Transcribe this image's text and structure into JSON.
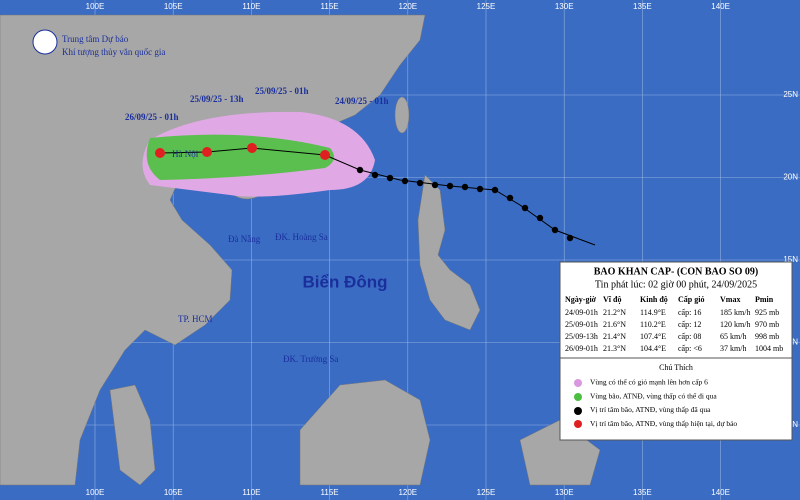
{
  "header": {
    "org": "Trung tâm Dự báo",
    "org_sub": "Khí tượng thủy văn quốc gia"
  },
  "grid": {
    "lon_labels": [
      "100E",
      "105E",
      "110E",
      "115E",
      "120E",
      "125E",
      "130E",
      "135E",
      "140E"
    ],
    "lat_labels": [
      "25N",
      "20N",
      "15N",
      "10N",
      "5N"
    ]
  },
  "map": {
    "track_labels": [
      "26/09/25 - 01h",
      "25/09/25 - 13h",
      "25/09/25 - 01h",
      "24/09/25 - 01h"
    ],
    "places": {
      "hanoi": "Hà Nội",
      "danang": "Đà Nẵng",
      "hoangsa": "ĐK. Hoàng Sa",
      "sea": "Biển Đông",
      "hcm": "TP. HCM",
      "truongsa": "ĐK. Trường Sa"
    }
  },
  "bulletin": {
    "title": "BAO KHAN CAP- (CON BAO SO 09)",
    "issued": "Tin phát lúc: 02 giờ 00 phút, 24/09/2025",
    "table": {
      "header": [
        "Ngày-giờ",
        "Vĩ độ",
        "Kinh độ",
        "Cấp gió",
        "Vmax",
        "Pmin"
      ],
      "rows": [
        [
          "24/09-01h",
          "21.2°N",
          "114.9°E",
          "cấp: 16",
          "185 km/h",
          "925 mb"
        ],
        [
          "25/09-01h",
          "21.6°N",
          "110.2°E",
          "cấp: 12",
          "120 km/h",
          "970 mb"
        ],
        [
          "25/09-13h",
          "21.4°N",
          "107.4°E",
          "cấp: 08",
          "65 km/h",
          "998 mb"
        ],
        [
          "26/09-01h",
          "21.3°N",
          "104.4°E",
          "cấp: <6",
          "37 km/h",
          "1004 mb"
        ]
      ]
    }
  },
  "legend": {
    "title": "Chú Thích",
    "items": [
      "Vùng có thể có gió mạnh lên hơn cấp 6",
      "Vùng bão, ATNĐ, vùng thấp có thể đi qua",
      "Vị trí tâm bão, ATNĐ, vùng thấp đã qua",
      "Vị trí tâm bão, ATNĐ, vùng thấp hiện tại, dự báo"
    ]
  }
}
